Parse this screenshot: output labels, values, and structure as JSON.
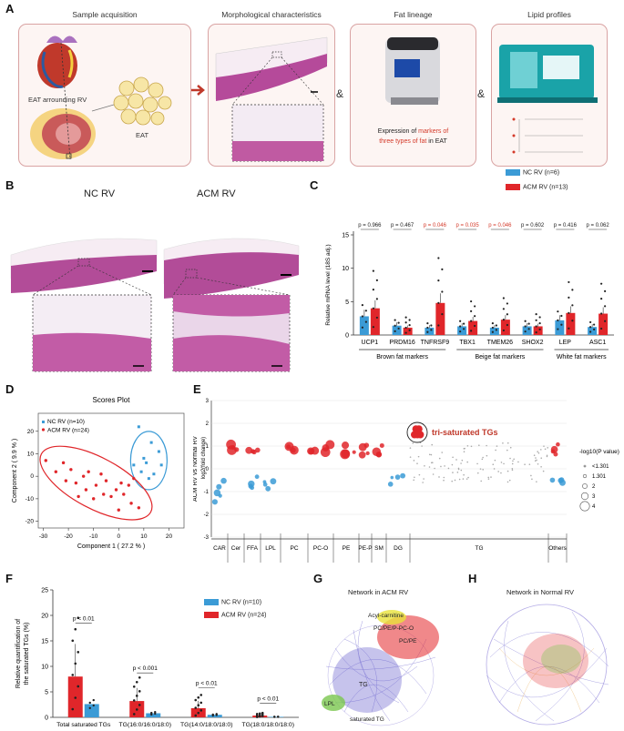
{
  "panels": {
    "A": {
      "label": "A",
      "titles": [
        "Sample acquisition",
        "Morphological characteristics",
        "Fat lineage",
        "Lipid profiles"
      ],
      "eat_rv": "EAT arrounding RV",
      "eat": "EAT",
      "amp": "&",
      "expr_prefix": "Expression ",
      "expr_of": "of ",
      "expr_markers": "markers of",
      "expr_three": "three types of fat",
      "expr_suffix": " in EAT"
    },
    "B": {
      "label": "B",
      "nc": "NC RV",
      "acm": "ACM RV"
    },
    "C": {
      "label": "C"
    },
    "D": {
      "label": "D"
    },
    "E": {
      "label": "E"
    },
    "F": {
      "label": "F"
    },
    "G": {
      "label": "G",
      "title": "Network in ACM RV",
      "labels": [
        "Acyl-carnitine",
        "PC/PE/P-PC-O",
        "PC/PE",
        "TG",
        "LPL",
        "saturated TG"
      ]
    },
    "H": {
      "label": "H",
      "title": "Network in Normal RV"
    }
  },
  "colors": {
    "nc": "#3b9bd6",
    "acm": "#e0262a",
    "red_text": "#d43a2a",
    "gray": "#999999"
  },
  "chart_data": [
    {
      "id": "C",
      "type": "bar",
      "ylabel": "Relative mRNA level (18S adj.)",
      "ylim": [
        0,
        15
      ],
      "yticks": [
        0,
        5,
        10,
        15
      ],
      "categories": [
        "UCP1",
        "PRDM16",
        "TNFRSF9",
        "TBX1",
        "TMEM26",
        "SHOX2",
        "LEP",
        "ASC1"
      ],
      "series": [
        {
          "name": "NC RV (n=6)",
          "values": [
            2.8,
            1.4,
            1.1,
            1.3,
            1.1,
            1.3,
            2.2,
            1.2
          ]
        },
        {
          "name": "ACM RV (n=13)",
          "values": [
            4.0,
            1.1,
            4.8,
            2.1,
            2.3,
            1.3,
            3.3,
            3.2
          ]
        }
      ],
      "pvalues": [
        "p = 0.966",
        "p = 0.467",
        "p = 0.046",
        "p = 0.035",
        "p = 0.046",
        "p = 0.602",
        "p = 0.416",
        "p = 0.062"
      ],
      "significant": [
        false,
        false,
        true,
        true,
        true,
        false,
        false,
        false
      ],
      "groups": [
        {
          "name": "Brown fat markers",
          "members": [
            0,
            1,
            2
          ]
        },
        {
          "name": "Beige fat markers",
          "members": [
            3,
            4,
            5
          ]
        },
        {
          "name": "White fat markers",
          "members": [
            6,
            7
          ]
        }
      ]
    },
    {
      "id": "D",
      "type": "scatter",
      "title": "Scores Plot",
      "xlabel": "Component 1 ( 27.2 % )",
      "ylabel": "Component 2 ( 9.9 % )",
      "xlim": [
        -32,
        26
      ],
      "ylim": [
        -23,
        28
      ],
      "xticks": [
        -30,
        -20,
        -10,
        0,
        10,
        20
      ],
      "yticks": [
        -20,
        -10,
        0,
        10,
        20
      ],
      "series": [
        {
          "name": "NC RV (n=10)",
          "points": [
            [
              8,
              22
            ],
            [
              13,
              15
            ],
            [
              16,
              11
            ],
            [
              11,
              6
            ],
            [
              17,
              5
            ],
            [
              6,
              5
            ],
            [
              9,
              2
            ],
            [
              14,
              1
            ],
            [
              12,
              -1
            ],
            [
              10,
              8
            ]
          ]
        },
        {
          "name": "ACM RV (n=24)",
          "points": [
            [
              -29,
              7
            ],
            [
              -25,
              2
            ],
            [
              -22,
              6
            ],
            [
              -19,
              3
            ],
            [
              -21,
              -2
            ],
            [
              -17,
              -3
            ],
            [
              -14,
              0
            ],
            [
              -12,
              2
            ],
            [
              -13,
              -6
            ],
            [
              -9,
              -4
            ],
            [
              -7,
              1
            ],
            [
              -5,
              -2
            ],
            [
              -10,
              -10
            ],
            [
              -6,
              -8
            ],
            [
              -3,
              -9
            ],
            [
              -1,
              -6
            ],
            [
              1,
              -3
            ],
            [
              2,
              -8
            ],
            [
              4,
              -4
            ],
            [
              6,
              -1
            ],
            [
              5,
              -12
            ],
            [
              8,
              -14
            ],
            [
              0,
              -15
            ],
            [
              -16,
              -9
            ]
          ]
        }
      ]
    },
    {
      "id": "E",
      "type": "scatter",
      "title": "tri-saturated TGs",
      "ylabel": "ACM RV vs Normal RV",
      "ylabel2": "log2(fold change)",
      "ylim": [
        -3,
        3
      ],
      "yticks": [
        -3,
        -2,
        -1,
        0,
        1,
        2,
        3
      ],
      "categories": [
        "CAR",
        "Cer",
        "FFA",
        "LPL",
        "PC",
        "PC-O",
        "PE",
        "PE-P",
        "SM",
        "DG",
        "TG",
        "Others"
      ],
      "legend_title": "-log10(P value)",
      "legend_sizes": [
        "<1.301",
        "1.301",
        "2",
        "3",
        "4"
      ]
    },
    {
      "id": "F",
      "type": "bar",
      "ylabel": "Relative quantification of the saturated TGs (%)",
      "ylim": [
        0,
        25
      ],
      "yticks": [
        0,
        5,
        10,
        15,
        20,
        25
      ],
      "categories": [
        "Total saturated TGs",
        "TG(16:0/16:0/18:0)",
        "TG(14:0/18:0/18:0)",
        "TG(18:0/18:0/18:0)"
      ],
      "series": [
        {
          "name": "ACM RV (n=24)",
          "values": [
            8.0,
            3.2,
            1.8,
            0.35
          ]
        },
        {
          "name": "NC RV (n=10)",
          "values": [
            2.6,
            0.8,
            0.5,
            0.1
          ]
        }
      ],
      "pvalues": [
        "p < 0.01",
        "p < 0.001",
        "p < 0.01",
        "p < 0.01"
      ]
    }
  ]
}
